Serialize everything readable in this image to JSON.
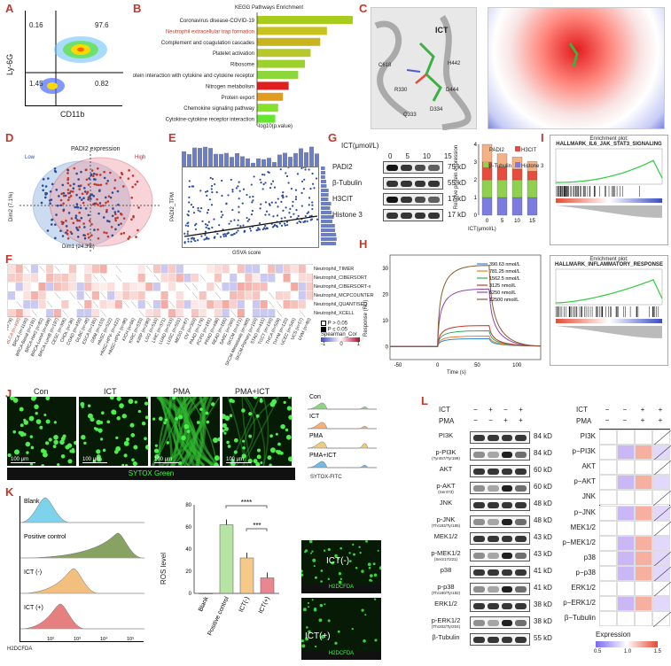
{
  "panels": {
    "a": "A",
    "b": "B",
    "c": "C",
    "d": "D",
    "e": "E",
    "f": "F",
    "g": "G",
    "h": "H",
    "i": "I",
    "j": "J",
    "k": "K",
    "l": "L"
  },
  "panelA": {
    "ylabel": "Ly-6G",
    "xlabel": "CD11b",
    "q_tl": "0.16",
    "q_tr": "97.6",
    "q_bl": "1.45",
    "q_br": "0.82"
  },
  "panelB": {
    "title": "KEGG Pathways Enrichment",
    "xlabel": "-log10(p.value)",
    "chart_data": {
      "type": "bar",
      "orientation": "horizontal",
      "title": "KEGG Pathways Enrichment",
      "xlabel": "-log10(p.value)",
      "categories": [
        "Coronavirus disease-COVID-19",
        "Neutrophil extracellular trap formation",
        "Complement and coagulation cascades",
        "Platelet activation",
        "Ribosome",
        "Viral protein interaction with cytokine and cytokine receptor",
        "Nitrogen metabolism",
        "Protein export",
        "Chemokine signaling pathway",
        "Cytokine-cytokine receptor interaction"
      ],
      "values": [
        10,
        7.3,
        6.6,
        5.6,
        5.0,
        4.3,
        3.3,
        2.7,
        2.2,
        1.9
      ],
      "colors": [
        "#a8cc1c",
        "#c8c21e",
        "#c8b41e",
        "#b8c82a",
        "#9cd02a",
        "#8cd83a",
        "#e02020",
        "#e09c1c",
        "#86e02c",
        "#66e62e"
      ],
      "highlight_index": 1
    }
  },
  "panelC": {
    "ligand": "ICT",
    "residues": [
      "C618",
      "H442",
      "R330",
      "D444",
      "Q333",
      "D334"
    ]
  },
  "panelD": {
    "title": "PADI2 expression",
    "legend_low": "Low",
    "legend_high": "High",
    "xlabel": "Dim1 (24.3%)",
    "ylabel": "Dim2 (7.1%)"
  },
  "panelE": {
    "xlabel": "GSVA score",
    "ylabel": "PADI2_TPM"
  },
  "panelF": {
    "rows": [
      "Neutrophil_TIMER",
      "Neutrophil_CIBERSORT",
      "Neutrophil_CIBERSORT-x",
      "Neutrophil_MCPCOUNTER",
      "Neutrophil_QUANTISEQ",
      "Neutrophil_XCELL"
    ],
    "cols": [
      "ACC (n=79)",
      "BLCA (n=408)",
      "BRCA (n=1100)",
      "BRCA-Basal (n=191)",
      "BRCA-Her2 (n=82)",
      "BRCA-LumA (n=499)",
      "BRCA-LumB (n=197)",
      "CESC (n=306)",
      "CHOL (n=36)",
      "COAD (n=458)",
      "DLBC (n=48)",
      "ESCA (n=185)",
      "GBM (n=153)",
      "HNSC (n=522)",
      "HNSC-HPV- (n=422)",
      "HNSC-HPV+ (n=98)",
      "KICH (n=66)",
      "KIRC (n=533)",
      "KIRP (n=290)",
      "LGG (n=516)",
      "LIHC (n=371)",
      "LUAD (n=515)",
      "LUSC (n=501)",
      "MESO (n=87)",
      "OV (n=303)",
      "PAAD (n=179)",
      "PCPG (n=181)",
      "PRAD (n=498)",
      "READ (n=166)",
      "SARC (n=260)",
      "SKCM (n=471)",
      "SKCM-Metastasis (n=368)",
      "SKCM-Primary (n=103)",
      "STAD (n=415)",
      "TGCT (n=150)",
      "THCA (n=509)",
      "THYM (n=120)",
      "UCEC (n=545)",
      "UCS (n=57)",
      "UVM (n=80)"
    ],
    "legend_ns": "P > 0.05",
    "legend_s": "P ≤ 0.05",
    "legend_title": "Spearman_Cor",
    "scale": [
      "-1",
      "0",
      "1"
    ]
  },
  "panelG": {
    "title": "ICT(μmol/L)",
    "doses": [
      "0",
      "5",
      "10",
      "15"
    ],
    "blots": [
      {
        "name": "PADI2",
        "size": "75 kD"
      },
      {
        "name": "β-Tubulin",
        "size": "55 kD"
      },
      {
        "name": "H3CIT",
        "size": "17 kD"
      },
      {
        "name": "Histone 3",
        "size": "17 kD"
      }
    ],
    "ylabel": "Relative protein expression",
    "xlabel": "ICT(μmol/L)",
    "chart_data": {
      "type": "bar",
      "stacked": true,
      "categories": [
        "0",
        "5",
        "10",
        "15"
      ],
      "ylim": [
        0,
        4
      ],
      "yticks": [
        "0",
        "1",
        "2",
        "3",
        "4"
      ],
      "series": [
        {
          "name": "PADI2",
          "color": "#f4b183",
          "values": [
            1,
            0.75,
            0.68,
            0.55
          ]
        },
        {
          "name": "H3CIT",
          "color": "#e74c3c",
          "values": [
            1,
            0.72,
            0.6,
            0.48
          ]
        },
        {
          "name": "β-Tubulin",
          "color": "#8fd14f",
          "values": [
            1,
            1,
            1,
            1
          ]
        },
        {
          "name": "Histone 3",
          "color": "#7b7be0",
          "values": [
            1,
            1,
            1,
            1
          ]
        }
      ]
    }
  },
  "panelH": {
    "xlabel": "Time (s)",
    "ylabel": "Response (RU)",
    "chart_data": {
      "type": "line",
      "xlabel": "Time (s)",
      "ylabel": "Response (RU)",
      "xlim": [
        -60,
        130
      ],
      "ylim": [
        -5,
        35
      ],
      "xticks": [
        "-50",
        "0",
        "50",
        "100"
      ],
      "yticks": [
        "0",
        "10",
        "20",
        "30"
      ],
      "series": [
        {
          "name": "390.63 nmol/L",
          "color": "#2e86de",
          "plateau": 3
        },
        {
          "name": "781.25 nmol/L",
          "color": "#e67e22",
          "plateau": 4
        },
        {
          "name": "1562.5 nmol/L",
          "color": "#27ae60",
          "plateau": 6
        },
        {
          "name": "3125 nmol/L",
          "color": "#c0392b",
          "plateau": 8
        },
        {
          "name": "6250 nmol/L",
          "color": "#8e44ad",
          "plateau": 22
        },
        {
          "name": "12500 nmol/L",
          "color": "#8b5a2b",
          "plateau": 31
        }
      ]
    }
  },
  "panelI": {
    "plot1": {
      "title": "Enrichment plot:",
      "subtitle": "HALLMARK_IL6_JAK_STAT3_SIGNALING"
    },
    "plot2": {
      "title": "Enrichment plot:",
      "subtitle": "HALLMARK_INFLAMMATORY_RESPONSE"
    }
  },
  "panelJ": {
    "labels": [
      "Con",
      "ICT",
      "PMA",
      "PMA+ICT"
    ],
    "scale": "100 μm",
    "stain": "SYTOX Green",
    "hist_labels": [
      "Con",
      "ICT",
      "PMA",
      "PMA+ICT"
    ],
    "hist_xlabel": "SYTOX-FITC"
  },
  "panelK": {
    "hist_labels": [
      "Blank",
      "Positive control",
      "ICT (-)",
      "ICT (+)"
    ],
    "hist_xlabel": "H2DCFDA",
    "ticks": [
      "10²",
      "10³",
      "10⁴",
      "10⁵"
    ],
    "ylabel": "ROS level",
    "sig1": "****",
    "sig2": "***",
    "chart_data": {
      "type": "bar",
      "categories": [
        "Blank",
        "Positive control",
        "ICT(-)",
        "ICT(+)"
      ],
      "values": [
        0,
        62,
        32,
        14
      ],
      "ylim": [
        0,
        80
      ],
      "yticks": [
        "0",
        "20",
        "40",
        "60",
        "80"
      ],
      "colors": [
        "#d9eef8",
        "#b7e4a4",
        "#f4c98a",
        "#e8878f"
      ]
    },
    "img_labels": [
      "ICT(-)",
      "ICT(+)"
    ],
    "img_stain": "H2DCFDA"
  },
  "panelL": {
    "treat_labels": [
      "ICT",
      "PMA"
    ],
    "ict_signs": [
      "−",
      "+",
      "−",
      "+"
    ],
    "pma_signs": [
      "−",
      "−",
      "+",
      "+"
    ],
    "blots": [
      {
        "name": "PI3K",
        "size": "84 kD"
      },
      {
        "name": "p-PI3K",
        "sub": "(Tyr467/Tyr199)",
        "size": "84 kD"
      },
      {
        "name": "AKT",
        "size": "60 kD"
      },
      {
        "name": "p-AKT",
        "sub": "(Ser473)",
        "size": "60 kD"
      },
      {
        "name": "JNK",
        "size": "48 kD"
      },
      {
        "name": "p-JNK",
        "sub": "(Thr183/Tyr185)",
        "size": "48 kD"
      },
      {
        "name": "MEK1/2",
        "size": "43 kD"
      },
      {
        "name": "p-MEK1/2",
        "sub": "(Ser217/221)",
        "size": "43 kD"
      },
      {
        "name": "p38",
        "size": "41 kD"
      },
      {
        "name": "p-p38",
        "sub": "(Thr180/Tyr182)",
        "size": "41 kD"
      },
      {
        "name": "ERK1/2",
        "size": "38 kD"
      },
      {
        "name": "p-ERK1/2",
        "sub": "(Thr202/Tyr204)",
        "size": "38 kD"
      },
      {
        "name": "β-Tubulin",
        "size": "55 kD"
      }
    ],
    "heat_rows": [
      "PI3K",
      "p−PI3K",
      "AKT",
      "p−AKT",
      "JNK",
      "p−JNK",
      "MEK1/2",
      "p−MEK1/2",
      "p38",
      "p−p38",
      "ERK1/2",
      "p−ERK1/2",
      "β−Tubulin"
    ],
    "legend_title": "Expression",
    "legend_ticks": [
      "0.5",
      "1.0",
      "1.5"
    ]
  }
}
